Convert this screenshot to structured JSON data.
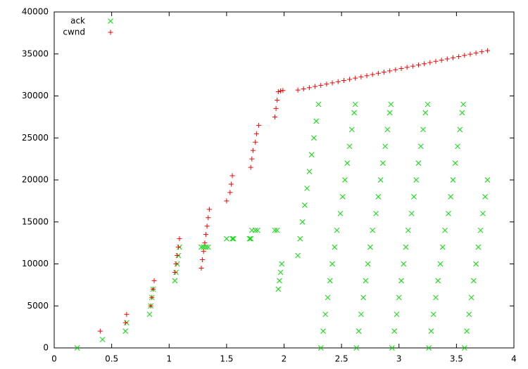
{
  "chart_data": {
    "type": "scatter",
    "xlim": [
      0,
      4
    ],
    "xticks": [
      0,
      0.5,
      1,
      1.5,
      2,
      2.5,
      3,
      3.5,
      4
    ],
    "ylim": [
      0,
      40000
    ],
    "yticks": [
      0,
      5000,
      10000,
      15000,
      20000,
      25000,
      30000,
      35000,
      40000
    ],
    "legend": "top-left",
    "series": [
      {
        "name": "ack",
        "color": "#00dd00",
        "marker": "x",
        "x": [
          0.2,
          0.42,
          0.62,
          0.63,
          0.83,
          0.84,
          0.85,
          0.86,
          1.05,
          1.06,
          1.07,
          1.08,
          1.09,
          1.28,
          1.3,
          1.32,
          1.34,
          1.5,
          1.55,
          1.56,
          1.7,
          1.71,
          1.72,
          1.75,
          1.77,
          1.92,
          1.94,
          1.95,
          1.96,
          1.97,
          1.98,
          2.12,
          2.14,
          2.16,
          2.18,
          2.2,
          2.22,
          2.24,
          2.26,
          2.28,
          2.3,
          2.32,
          2.34,
          2.36,
          2.38,
          2.4,
          2.42,
          2.44,
          2.46,
          2.49,
          2.51,
          2.53,
          2.55,
          2.57,
          2.59,
          2.61,
          2.62,
          2.63,
          2.65,
          2.67,
          2.69,
          2.71,
          2.73,
          2.75,
          2.77,
          2.8,
          2.82,
          2.84,
          2.86,
          2.88,
          2.9,
          2.92,
          2.93,
          2.94,
          2.96,
          2.98,
          3.0,
          3.02,
          3.04,
          3.06,
          3.08,
          3.11,
          3.13,
          3.15,
          3.17,
          3.19,
          3.21,
          3.23,
          3.25,
          3.26,
          3.28,
          3.3,
          3.32,
          3.34,
          3.36,
          3.38,
          3.4,
          3.43,
          3.45,
          3.47,
          3.49,
          3.51,
          3.53,
          3.55,
          3.56,
          3.57,
          3.59,
          3.61,
          3.63,
          3.65,
          3.67,
          3.69,
          3.71,
          3.73,
          3.75,
          3.77
        ],
        "values": [
          0,
          1000,
          2000,
          3000,
          4000,
          5000,
          6000,
          7000,
          8000,
          9000,
          10000,
          11000,
          12000,
          12000,
          12000,
          12000,
          12000,
          13000,
          13000,
          13000,
          13000,
          13000,
          14000,
          14000,
          14000,
          14000,
          14000,
          7000,
          8000,
          9000,
          10000,
          11000,
          13000,
          15000,
          17000,
          19000,
          21000,
          23000,
          25000,
          27000,
          29000,
          0,
          2000,
          4000,
          6000,
          8000,
          10000,
          12000,
          14000,
          16000,
          18000,
          20000,
          22000,
          24000,
          26000,
          28000,
          29000,
          0,
          2000,
          4000,
          6000,
          8000,
          10000,
          12000,
          14000,
          16000,
          18000,
          20000,
          22000,
          24000,
          26000,
          28000,
          29000,
          0,
          2000,
          4000,
          6000,
          8000,
          10000,
          12000,
          14000,
          16000,
          18000,
          20000,
          22000,
          24000,
          26000,
          28000,
          29000,
          0,
          2000,
          4000,
          6000,
          8000,
          10000,
          12000,
          14000,
          16000,
          18000,
          20000,
          22000,
          24000,
          26000,
          28000,
          29000,
          0,
          2000,
          4000,
          6000,
          8000,
          10000,
          12000,
          14000,
          16000,
          18000,
          20000
        ]
      },
      {
        "name": "cwnd",
        "color": "#ff0000",
        "marker": "+",
        "x": [
          0.4,
          0.62,
          0.63,
          0.84,
          0.85,
          0.86,
          0.87,
          1.05,
          1.06,
          1.07,
          1.08,
          1.09,
          1.28,
          1.29,
          1.3,
          1.31,
          1.32,
          1.33,
          1.34,
          1.35,
          1.5,
          1.53,
          1.54,
          1.55,
          1.71,
          1.72,
          1.73,
          1.75,
          1.76,
          1.78,
          1.92,
          1.93,
          1.94,
          1.95,
          1.97,
          1.99,
          2.12,
          2.17,
          2.22,
          2.27,
          2.32,
          2.37,
          2.42,
          2.47,
          2.52,
          2.57,
          2.62,
          2.67,
          2.72,
          2.77,
          2.82,
          2.87,
          2.92,
          2.97,
          3.02,
          3.07,
          3.12,
          3.17,
          3.22,
          3.27,
          3.32,
          3.37,
          3.42,
          3.47,
          3.52,
          3.57,
          3.62,
          3.67,
          3.72,
          3.77
        ],
        "values": [
          2000,
          3000,
          4000,
          5000,
          6000,
          7000,
          8000,
          9000,
          10000,
          11000,
          12000,
          13000,
          9500,
          10500,
          11500,
          12500,
          13500,
          14500,
          15500,
          16500,
          17500,
          18500,
          19500,
          20500,
          21500,
          22500,
          23500,
          24500,
          25500,
          26500,
          27500,
          28500,
          29500,
          30500,
          30600,
          30650,
          30700,
          30842,
          30985,
          31127,
          31270,
          31412,
          31554,
          31697,
          31839,
          31982,
          32124,
          32266,
          32409,
          32551,
          32694,
          32836,
          32978,
          33121,
          33263,
          33406,
          33548,
          33690,
          33833,
          33975,
          34118,
          34260,
          34402,
          34545,
          34687,
          34830,
          34972,
          35114,
          35257,
          35399
        ]
      }
    ]
  }
}
